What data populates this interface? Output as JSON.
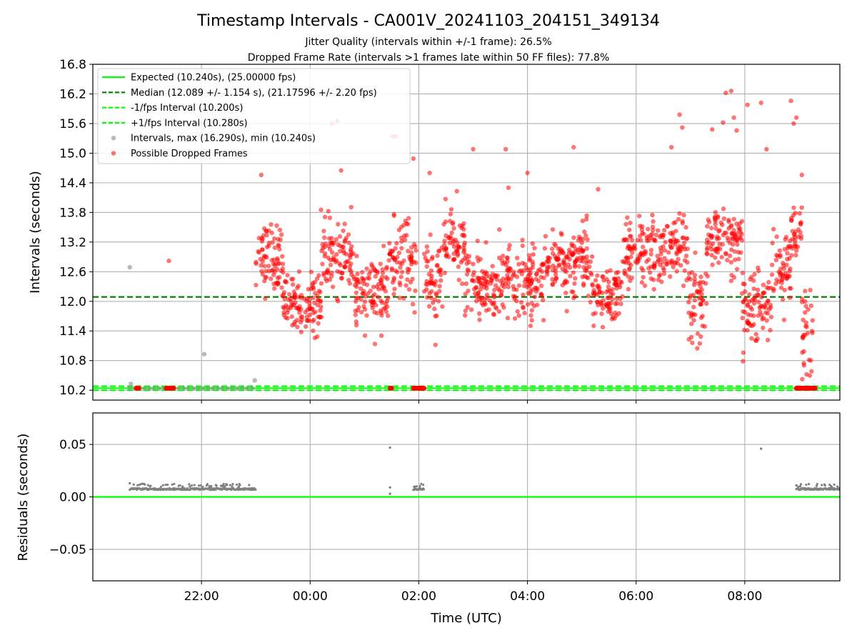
{
  "figure": {
    "title": "Timestamp Intervals - CA001V_20241103_204151_349134",
    "subtitle_1": "Jitter Quality (intervals within +/-1 frame): 26.5%",
    "subtitle_2": "Dropped Frame Rate (intervals >1 frames late within 50 FF files): 77.8%",
    "xlabel": "Time (UTC)"
  },
  "colors": {
    "expected": "#00ff00",
    "median": "#008000",
    "fps_band": "#00ff00",
    "intervals": "#808080",
    "dropped": "#ff0000",
    "residual_points": "#808080",
    "residual_zero": "#00ff00",
    "grid": "#b0b0b0"
  },
  "chart_data": [
    {
      "type": "scatter",
      "panel": "top",
      "ylabel": "Intervals (seconds)",
      "ylim": [
        10.0,
        16.8
      ],
      "yticks": [
        "10.2",
        "10.8",
        "11.4",
        "12.0",
        "12.6",
        "13.2",
        "13.8",
        "14.4",
        "15.0",
        "15.6",
        "16.2",
        "16.8"
      ],
      "xlim_hours": [
        20.0,
        33.75
      ],
      "xticks": [
        {
          "h": 22,
          "label": "22:00"
        },
        {
          "h": 24,
          "label": "00:00"
        },
        {
          "h": 26,
          "label": "02:00"
        },
        {
          "h": 28,
          "label": "04:00"
        },
        {
          "h": 30,
          "label": "06:00"
        },
        {
          "h": 32,
          "label": "08:00"
        }
      ],
      "grid": "both",
      "legend_placement": "upper left",
      "legend": [
        {
          "label": "Expected (10.240s), (25.00000 fps)",
          "style": "solid",
          "series": "expected"
        },
        {
          "label": "Median (12.089 +/- 1.154 s), (21.17596 +/- 2.20 fps)",
          "style": "dashed",
          "series": "median"
        },
        {
          "label": "-1/fps Interval (10.200s)",
          "style": "dashed",
          "series": "fps_band"
        },
        {
          "label": "+1/fps Interval (10.280s)",
          "style": "dashed",
          "series": "fps_band"
        },
        {
          "label": "Intervals, max (16.290s), min (10.240s)",
          "style": "dot",
          "series": "intervals"
        },
        {
          "label": "Possible Dropped Frames",
          "style": "dot",
          "series": "dropped"
        }
      ],
      "lines": {
        "expected": 10.24,
        "median": 12.089,
        "minus_fps": 10.2,
        "plus_fps": 10.28
      },
      "intervals_nominal_span_hours": [
        20.68,
        23.0
      ],
      "intervals_outliers": [
        {
          "x": 20.68,
          "y": 12.69
        },
        {
          "x": 20.7,
          "y": 10.33
        },
        {
          "x": 22.05,
          "y": 10.93
        },
        {
          "x": 22.98,
          "y": 10.4
        }
      ],
      "dropped_clusters_at_expected": [
        {
          "x": [
            20.8,
            20.85
          ]
        },
        {
          "x": [
            21.35,
            21.5
          ]
        },
        {
          "x": [
            25.47,
            25.5
          ]
        },
        {
          "x": [
            25.9,
            26.1
          ]
        },
        {
          "x": [
            32.95,
            33.3
          ]
        }
      ],
      "dropped_isolated": [
        {
          "x": 21.4,
          "y": 12.82
        },
        {
          "x": 23.1,
          "y": 14.56
        },
        {
          "x": 24.4,
          "y": 15.6
        },
        {
          "x": 24.5,
          "y": 15.65
        },
        {
          "x": 24.57,
          "y": 14.65
        },
        {
          "x": 25.52,
          "y": 15.34
        },
        {
          "x": 25.58,
          "y": 15.34
        },
        {
          "x": 25.9,
          "y": 14.89
        },
        {
          "x": 26.2,
          "y": 14.6
        },
        {
          "x": 26.7,
          "y": 14.23
        },
        {
          "x": 27.0,
          "y": 15.08
        },
        {
          "x": 27.6,
          "y": 15.08
        },
        {
          "x": 27.65,
          "y": 14.3
        },
        {
          "x": 28.0,
          "y": 14.6
        },
        {
          "x": 28.85,
          "y": 15.12
        },
        {
          "x": 29.3,
          "y": 14.27
        },
        {
          "x": 30.65,
          "y": 15.12
        },
        {
          "x": 30.8,
          "y": 15.78
        },
        {
          "x": 30.85,
          "y": 15.52
        },
        {
          "x": 31.4,
          "y": 15.48
        },
        {
          "x": 31.6,
          "y": 15.62
        },
        {
          "x": 31.65,
          "y": 16.22
        },
        {
          "x": 31.75,
          "y": 16.26
        },
        {
          "x": 31.8,
          "y": 15.72
        },
        {
          "x": 31.85,
          "y": 15.46
        },
        {
          "x": 32.05,
          "y": 15.98
        },
        {
          "x": 32.3,
          "y": 16.02
        },
        {
          "x": 32.4,
          "y": 15.08
        },
        {
          "x": 32.85,
          "y": 16.06
        },
        {
          "x": 32.9,
          "y": 15.6
        },
        {
          "x": 32.95,
          "y": 15.72
        },
        {
          "x": 33.05,
          "y": 14.56
        }
      ],
      "dropped_dense_segments": [
        {
          "x_range": [
            23.0,
            23.5
          ],
          "center": 12.9,
          "spread": 0.35
        },
        {
          "x_range": [
            23.5,
            24.2
          ],
          "center": 11.95,
          "spread": 0.3
        },
        {
          "x_range": [
            24.2,
            24.8
          ],
          "center": 12.9,
          "spread": 0.35
        },
        {
          "x_range": [
            24.8,
            25.45
          ],
          "center": 12.15,
          "spread": 0.35
        },
        {
          "x_range": [
            25.45,
            25.95
          ],
          "center": 12.8,
          "spread": 0.4
        },
        {
          "x_range": [
            26.1,
            26.45
          ],
          "center": 12.4,
          "spread": 0.45
        },
        {
          "x_range": [
            26.45,
            26.85
          ],
          "center": 13.15,
          "spread": 0.3
        },
        {
          "x_range": [
            26.85,
            27.3
          ],
          "center": 12.35,
          "spread": 0.35
        },
        {
          "x_range": [
            27.3,
            28.3
          ],
          "center": 12.35,
          "spread": 0.35
        },
        {
          "x_range": [
            28.3,
            28.9
          ],
          "center": 12.8,
          "spread": 0.35
        },
        {
          "x_range": [
            28.9,
            29.2
          ],
          "center": 12.9,
          "spread": 0.35
        },
        {
          "x_range": [
            29.2,
            29.75
          ],
          "center": 12.05,
          "spread": 0.3
        },
        {
          "x_range": [
            29.75,
            30.55
          ],
          "center": 12.95,
          "spread": 0.35
        },
        {
          "x_range": [
            30.55,
            30.95
          ],
          "center": 13.1,
          "spread": 0.3
        },
        {
          "x_range": [
            30.95,
            31.3
          ],
          "center": 12.0,
          "spread": 0.45
        },
        {
          "x_range": [
            31.3,
            31.95
          ],
          "center": 13.2,
          "spread": 0.3
        },
        {
          "x_range": [
            31.95,
            32.5
          ],
          "center": 11.95,
          "spread": 0.35
        },
        {
          "x_range": [
            32.5,
            32.85
          ],
          "center": 12.65,
          "spread": 0.35
        },
        {
          "x_range": [
            32.85,
            33.05
          ],
          "center": 13.3,
          "spread": 0.3
        },
        {
          "x_range": [
            33.05,
            33.25
          ],
          "center": 11.4,
          "spread": 0.6
        }
      ]
    },
    {
      "type": "scatter",
      "panel": "bottom",
      "ylabel": "Residuals (seconds)",
      "ylim": [
        -0.08,
        0.08
      ],
      "yticks": [
        "0.05",
        "0.00",
        "−0.05"
      ],
      "ytick_values": [
        0.05,
        0.0,
        -0.05
      ],
      "xlim_hours": [
        20.0,
        33.75
      ],
      "zero_line": 0.0,
      "residual_baseline": 0.0075,
      "residual_segments_hours": [
        {
          "x_range": [
            20.68,
            23.0
          ]
        },
        {
          "x_range": [
            25.9,
            26.1
          ]
        },
        {
          "x_range": [
            32.95,
            33.75
          ]
        }
      ],
      "residual_outliers": [
        {
          "x": 20.68,
          "y": 0.013
        },
        {
          "x": 25.47,
          "y": 0.047
        },
        {
          "x": 25.47,
          "y": 0.009
        },
        {
          "x": 25.47,
          "y": 0.003
        },
        {
          "x": 32.3,
          "y": 0.046
        },
        {
          "x": 32.95,
          "y": 0.011
        }
      ]
    }
  ]
}
